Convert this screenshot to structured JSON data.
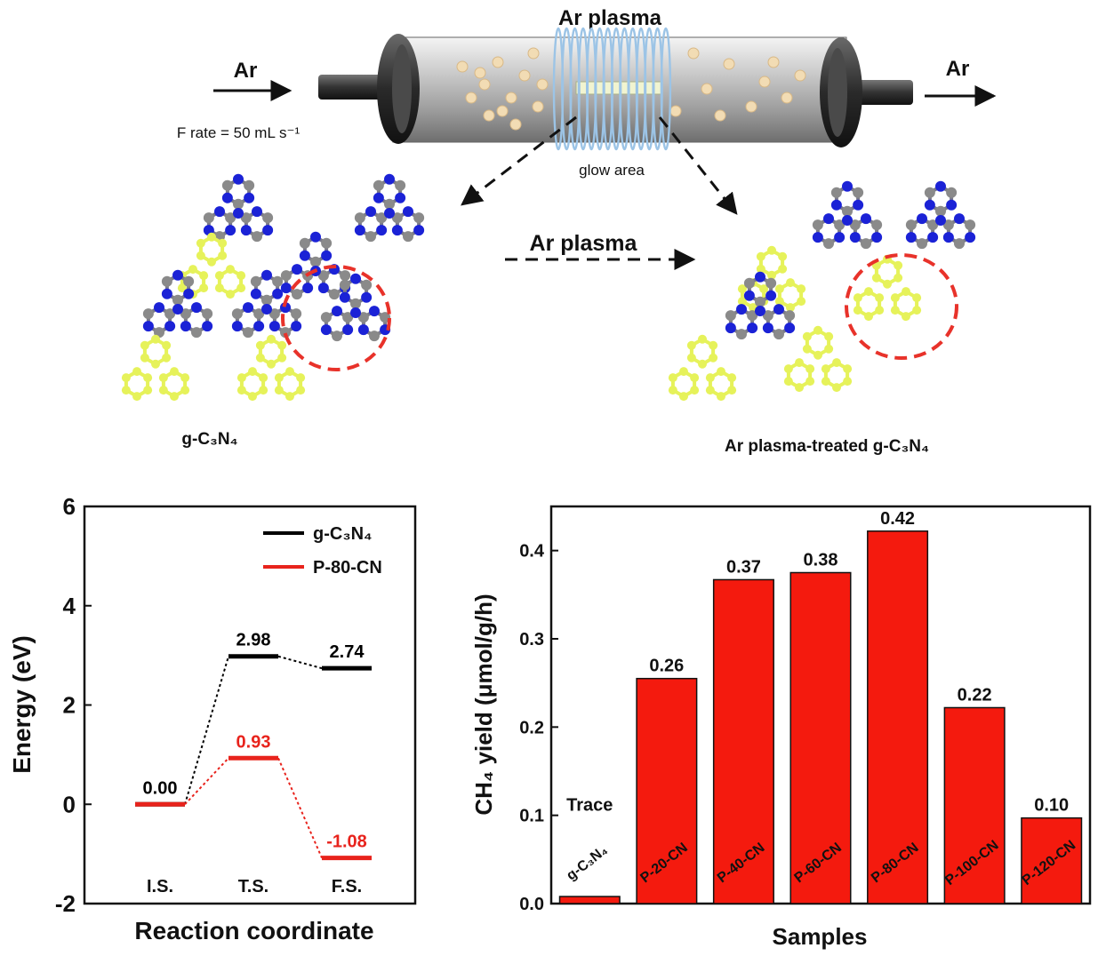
{
  "scheme": {
    "tube_title": "Ar plasma",
    "gas_in": "Ar",
    "gas_out": "Ar",
    "flow_rate": "F rate = 50 mL s⁻¹",
    "glow_label": "glow area",
    "process_label": "Ar plasma",
    "left_structure_label": "g-C₃N₄",
    "right_structure_label": "Ar plasma-treated g-C₃N₄",
    "colors": {
      "carbon_ring": "#e6f25a",
      "nitrogen": "#1b22d6",
      "carbon": "#8a8a8a",
      "defect_circle": "#e8322a",
      "coil": "#9cc4e6"
    }
  },
  "chart_data": [
    {
      "type": "line",
      "xlabel": "Reaction coordinate",
      "ylabel": "Energy (eV)",
      "ylim": [
        -2,
        6
      ],
      "yticks": [
        "-2",
        "0",
        "2",
        "4",
        "6"
      ],
      "categories": [
        "I.S.",
        "T.S.",
        "F.S."
      ],
      "legend_position": "top-right",
      "series": [
        {
          "name": "g-C₃N₄",
          "color": "#000000",
          "values": [
            0.0,
            2.98,
            2.74
          ],
          "labels": [
            "0.00",
            "2.98",
            "2.74"
          ]
        },
        {
          "name": "P-80-CN",
          "color": "#e8231c",
          "values": [
            0.0,
            0.93,
            -1.08
          ],
          "labels": [
            "",
            "0.93",
            "-1.08"
          ]
        }
      ]
    },
    {
      "type": "bar",
      "xlabel": "Samples",
      "ylabel": "CH₄ yield (μmol/g/h)",
      "ylim": [
        0,
        0.45
      ],
      "yticks": [
        "0.0",
        "0.1",
        "0.2",
        "0.3",
        "0.4"
      ],
      "bar_color": "#f41a0e",
      "categories": [
        "g-C₃N₄",
        "P-20-CN",
        "P-40-CN",
        "P-60-CN",
        "P-80-CN",
        "P-100-CN",
        "P-120-CN"
      ],
      "values": [
        0.008,
        0.255,
        0.367,
        0.375,
        0.422,
        0.222,
        0.097
      ],
      "value_labels": [
        "Trace",
        "0.26",
        "0.37",
        "0.38",
        "0.42",
        "0.22",
        "0.10"
      ]
    }
  ]
}
